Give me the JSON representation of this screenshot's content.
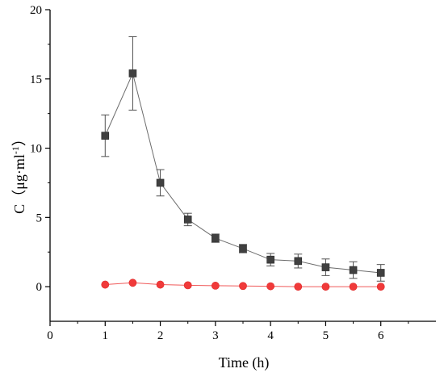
{
  "chart_data": {
    "type": "line",
    "title": "",
    "xlabel": "Time (h)",
    "ylabel_main": "C（μg·ml",
    "ylabel_sup": "-1",
    "ylabel_close": "）",
    "xlim": [
      0,
      7
    ],
    "ylim": [
      -2.5,
      20
    ],
    "xticks": [
      0,
      1,
      2,
      3,
      4,
      5,
      6
    ],
    "yticks": [
      0,
      5,
      10,
      15,
      20
    ],
    "grid": false,
    "legend": "none",
    "series": [
      {
        "color": "#404040",
        "marker": "square",
        "x": [
          1,
          1.5,
          2,
          2.5,
          3,
          3.5,
          4,
          4.5,
          5,
          5.5,
          6
        ],
        "y": [
          10.9,
          15.4,
          7.5,
          4.85,
          3.5,
          2.75,
          1.95,
          1.85,
          1.4,
          1.2,
          1.0
        ],
        "err": [
          1.5,
          2.65,
          0.95,
          0.45,
          0.3,
          0.3,
          0.45,
          0.5,
          0.6,
          0.6,
          0.6
        ]
      },
      {
        "color": "#f03a3a",
        "marker": "circle",
        "x": [
          1,
          1.5,
          2,
          2.5,
          3,
          3.5,
          4,
          4.5,
          5,
          5.5,
          6
        ],
        "y": [
          0.15,
          0.28,
          0.15,
          0.1,
          0.07,
          0.05,
          0.03,
          0.0,
          0.0,
          0.0,
          0.0
        ],
        "err": [
          0,
          0,
          0,
          0,
          0,
          0,
          0,
          0,
          0,
          0,
          0
        ]
      }
    ]
  }
}
